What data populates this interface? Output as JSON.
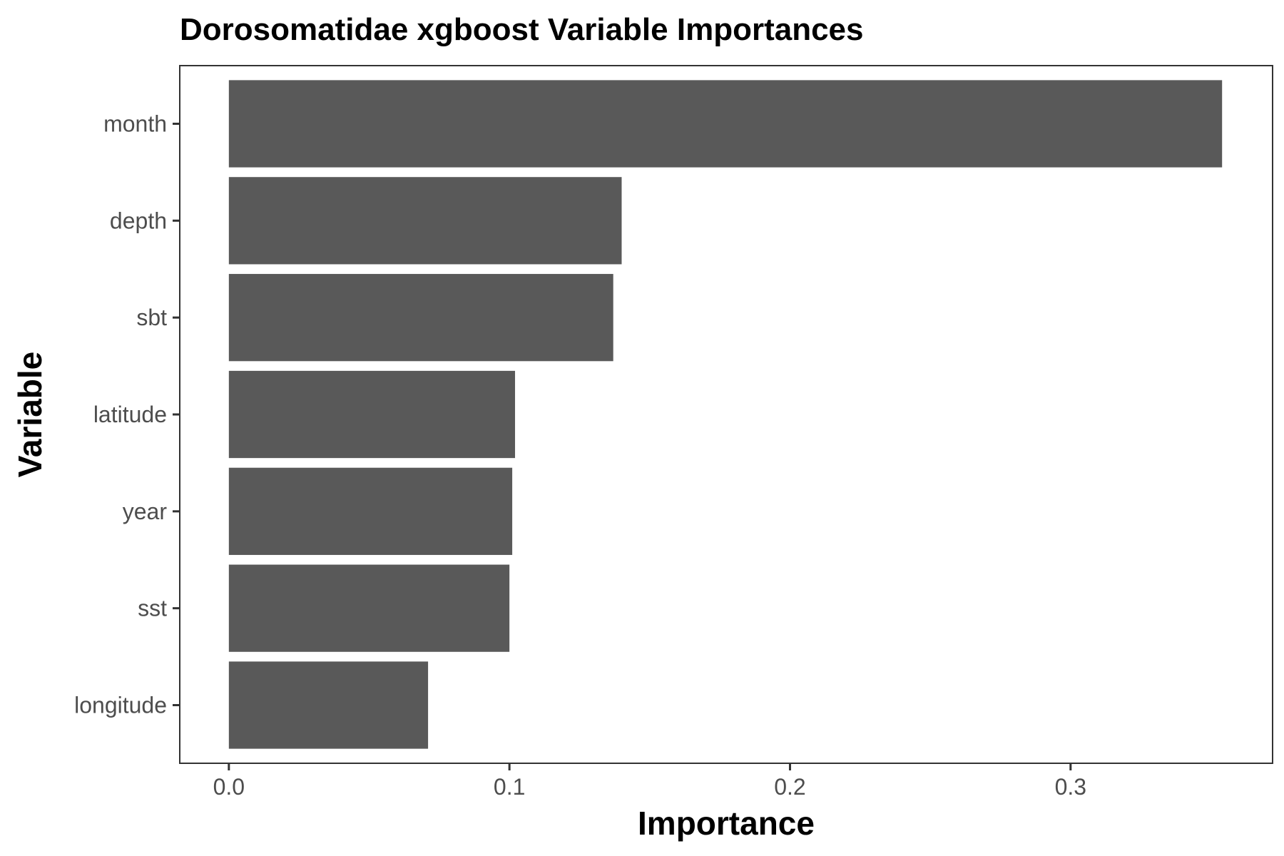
{
  "chart_data": {
    "type": "bar",
    "orientation": "horizontal",
    "title": "Dorosomatidae xgboost Variable Importances",
    "xlabel": "Importance",
    "ylabel": "Variable",
    "categories": [
      "month",
      "depth",
      "sbt",
      "latitude",
      "year",
      "sst",
      "longitude"
    ],
    "values": [
      0.354,
      0.14,
      0.137,
      0.102,
      0.101,
      0.1,
      0.071
    ],
    "xlim": [
      -0.0175,
      0.372
    ],
    "xticks": [
      0.0,
      0.1,
      0.2,
      0.3
    ],
    "xtick_labels": [
      "0.0",
      "0.1",
      "0.2",
      "0.3"
    ],
    "grid": false,
    "bar_color": "#595959"
  }
}
